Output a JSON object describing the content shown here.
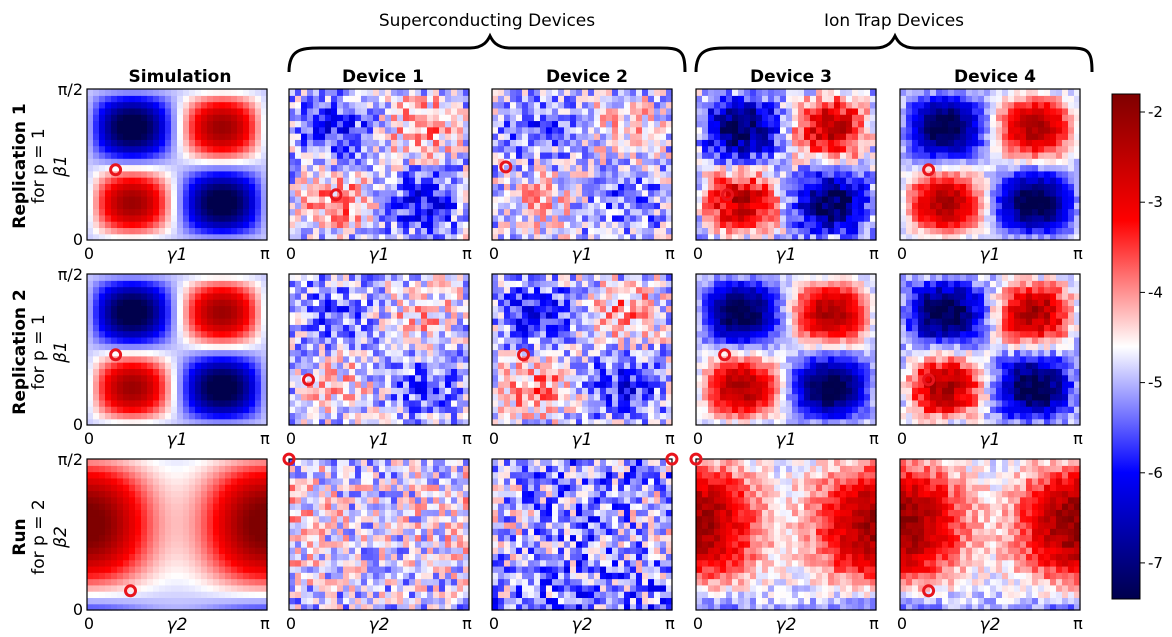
{
  "groups": [
    {
      "label": "Superconducting Devices",
      "cols": [
        1,
        2
      ]
    },
    {
      "label": "Ion Trap Devices",
      "cols": [
        3,
        4
      ]
    }
  ],
  "columns": [
    "Simulation",
    "Device 1",
    "Device 2",
    "Device 3",
    "Device 4"
  ],
  "rows": [
    {
      "title": "Replication 1",
      "subtitle": "for p = 1",
      "y_axis": "β1",
      "x_axis": "γ1"
    },
    {
      "title": "Replication 2",
      "subtitle": "for p = 1",
      "y_axis": "β1",
      "x_axis": "γ1"
    },
    {
      "title": "Run",
      "subtitle": "for p = 2",
      "y_axis": "β2",
      "x_axis": "γ2"
    }
  ],
  "x_tick_labels": [
    "0",
    "π"
  ],
  "y_tick_labels": [
    "0",
    "π/2"
  ],
  "colormap": {
    "name": "seismic",
    "low": "#00004c",
    "mid": "#ffffff",
    "high": "#7f0000",
    "vmin": -7.4,
    "vmax": -1.8,
    "ticks": [
      "-2",
      "-3",
      "-4",
      "-5",
      "-6",
      "-7"
    ],
    "tick_values": [
      -2,
      -3,
      -4,
      -5,
      -6,
      -7
    ]
  },
  "marker_color": "#e8141c",
  "chart_data": {
    "type": "heatmap",
    "x_range": [
      0,
      3.1416
    ],
    "y_range": [
      0,
      1.5708
    ],
    "value_range": [
      -7.4,
      -1.8
    ],
    "panels": [
      {
        "row": 0,
        "col": 0,
        "scale": 1.0,
        "noise": 0.0,
        "min_marker": [
          0.5,
          0.73
        ]
      },
      {
        "row": 0,
        "col": 1,
        "scale": 0.35,
        "noise": 0.28,
        "min_marker": [
          0.82,
          0.47
        ]
      },
      {
        "row": 0,
        "col": 2,
        "scale": 0.2,
        "noise": 0.28,
        "min_marker": [
          0.24,
          0.76
        ]
      },
      {
        "row": 0,
        "col": 3,
        "scale": 0.85,
        "noise": 0.22,
        "min_marker": [
          0.55,
          0.47
        ]
      },
      {
        "row": 0,
        "col": 4,
        "scale": 0.95,
        "noise": 0.1,
        "min_marker": [
          0.5,
          0.73
        ]
      },
      {
        "row": 1,
        "col": 0,
        "scale": 1.0,
        "noise": 0.0,
        "min_marker": [
          0.5,
          0.73
        ]
      },
      {
        "row": 1,
        "col": 1,
        "scale": 0.22,
        "noise": 0.28,
        "min_marker": [
          0.34,
          0.47
        ]
      },
      {
        "row": 1,
        "col": 2,
        "scale": 0.35,
        "noise": 0.28,
        "min_marker": [
          0.55,
          0.73
        ]
      },
      {
        "row": 1,
        "col": 3,
        "scale": 0.95,
        "noise": 0.1,
        "min_marker": [
          0.5,
          0.73
        ]
      },
      {
        "row": 1,
        "col": 4,
        "scale": 0.95,
        "noise": 0.16,
        "min_marker": [
          0.5,
          0.47
        ]
      },
      {
        "row": 2,
        "col": 0,
        "scale": 1.0,
        "noise": 0.0,
        "min_marker": [
          0.76,
          0.2
        ]
      },
      {
        "row": 2,
        "col": 1,
        "scale": 0.14,
        "noise": 0.3,
        "min_marker": [
          0.0,
          1.57
        ]
      },
      {
        "row": 2,
        "col": 2,
        "scale": 0.12,
        "noise": 0.35,
        "min_marker": [
          3.14,
          1.57
        ]
      },
      {
        "row": 2,
        "col": 3,
        "scale": 0.85,
        "noise": 0.14,
        "min_marker": [
          0.0,
          1.57
        ]
      },
      {
        "row": 2,
        "col": 4,
        "scale": 0.9,
        "noise": 0.14,
        "min_marker": [
          0.5,
          0.2
        ]
      }
    ]
  }
}
